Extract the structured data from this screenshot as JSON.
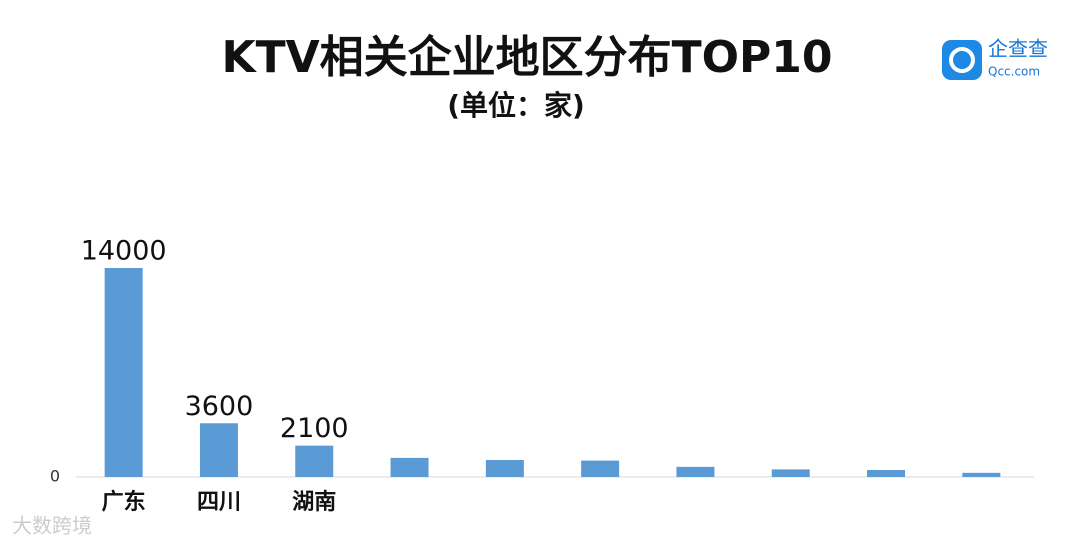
{
  "chart_data": {
    "type": "bar",
    "title": "KTV相关企业地区分布TOP10",
    "subtitle": "(单位：家)",
    "categories": [
      "广东",
      "四川",
      "湖南",
      null,
      null,
      null,
      null,
      null,
      null,
      null
    ],
    "values": [
      14000,
      3600,
      2100,
      1280,
      1140,
      1100,
      680,
      510,
      470,
      280
    ],
    "value_labels": [
      "14000",
      "3600",
      "2100",
      null,
      null,
      null,
      null,
      null,
      null,
      null
    ],
    "color": "#5b9bd5",
    "ylim": [
      0,
      14000
    ],
    "yticks": [
      0
    ],
    "grid": false
  },
  "logo": {
    "name": "企查查",
    "url": "Qcc.com"
  },
  "watermark": "大数跨境"
}
